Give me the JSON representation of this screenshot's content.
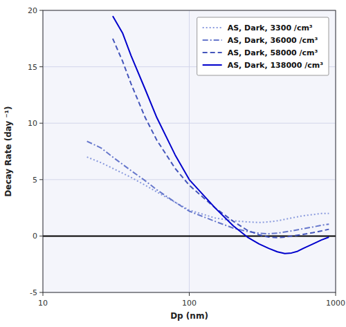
{
  "chart_data": {
    "type": "line",
    "title": "",
    "xlabel": "Dp (nm)",
    "ylabel": "Decay Rate (day ⁻¹)",
    "log": "x",
    "grid": true,
    "legend": "upper right",
    "xlim": [
      10,
      1000
    ],
    "xticks": [
      10,
      100,
      1000
    ],
    "ylim": [
      -5,
      20
    ],
    "yticks": [
      -5,
      0,
      5,
      10,
      15,
      20
    ],
    "series": [
      {
        "name": "AS, Dark, 3300 /cm³",
        "color": "#8899dd",
        "line_style": "dotted",
        "x": [
          20,
          25,
          30,
          40,
          50,
          60,
          80,
          100,
          150,
          200,
          250,
          300,
          350,
          400,
          500,
          600,
          700,
          800,
          900
        ],
        "values": [
          7.0,
          6.5,
          6.0,
          5.2,
          4.5,
          3.9,
          3.0,
          2.3,
          1.6,
          1.35,
          1.25,
          1.2,
          1.25,
          1.35,
          1.6,
          1.8,
          1.9,
          2.0,
          2.0
        ]
      },
      {
        "name": "AS, Dark, 36000 /cm³",
        "color": "#6677cc",
        "line_style": "dashdot",
        "x": [
          20,
          25,
          30,
          40,
          50,
          60,
          80,
          100,
          150,
          200,
          250,
          300,
          350,
          400,
          500,
          600,
          700,
          800,
          900
        ],
        "values": [
          8.4,
          7.8,
          7.0,
          5.8,
          4.9,
          4.1,
          3.0,
          2.2,
          1.3,
          0.7,
          0.4,
          0.25,
          0.2,
          0.25,
          0.45,
          0.65,
          0.8,
          0.95,
          1.05
        ]
      },
      {
        "name": "AS, Dark, 58000 /cm³",
        "color": "#4455bb",
        "line_style": "dashed",
        "x": [
          30,
          35,
          40,
          50,
          60,
          80,
          100,
          150,
          200,
          250,
          300,
          350,
          400,
          450,
          500,
          600,
          700,
          800,
          900
        ],
        "values": [
          17.5,
          15.5,
          13.5,
          10.5,
          8.5,
          6.0,
          4.5,
          2.5,
          1.3,
          0.5,
          0.1,
          -0.1,
          -0.15,
          -0.1,
          0.0,
          0.15,
          0.3,
          0.45,
          0.6
        ]
      },
      {
        "name": "AS, Dark, 138000 /cm³",
        "color": "#0000cc",
        "line_style": "solid",
        "x": [
          30,
          35,
          40,
          50,
          60,
          80,
          100,
          150,
          200,
          250,
          300,
          350,
          400,
          450,
          500,
          550,
          600,
          700,
          800,
          900
        ],
        "values": [
          19.5,
          18.0,
          16.0,
          13.0,
          10.5,
          7.2,
          5.0,
          2.5,
          0.9,
          -0.1,
          -0.7,
          -1.1,
          -1.4,
          -1.55,
          -1.5,
          -1.35,
          -1.1,
          -0.7,
          -0.35,
          -0.1
        ]
      }
    ]
  }
}
